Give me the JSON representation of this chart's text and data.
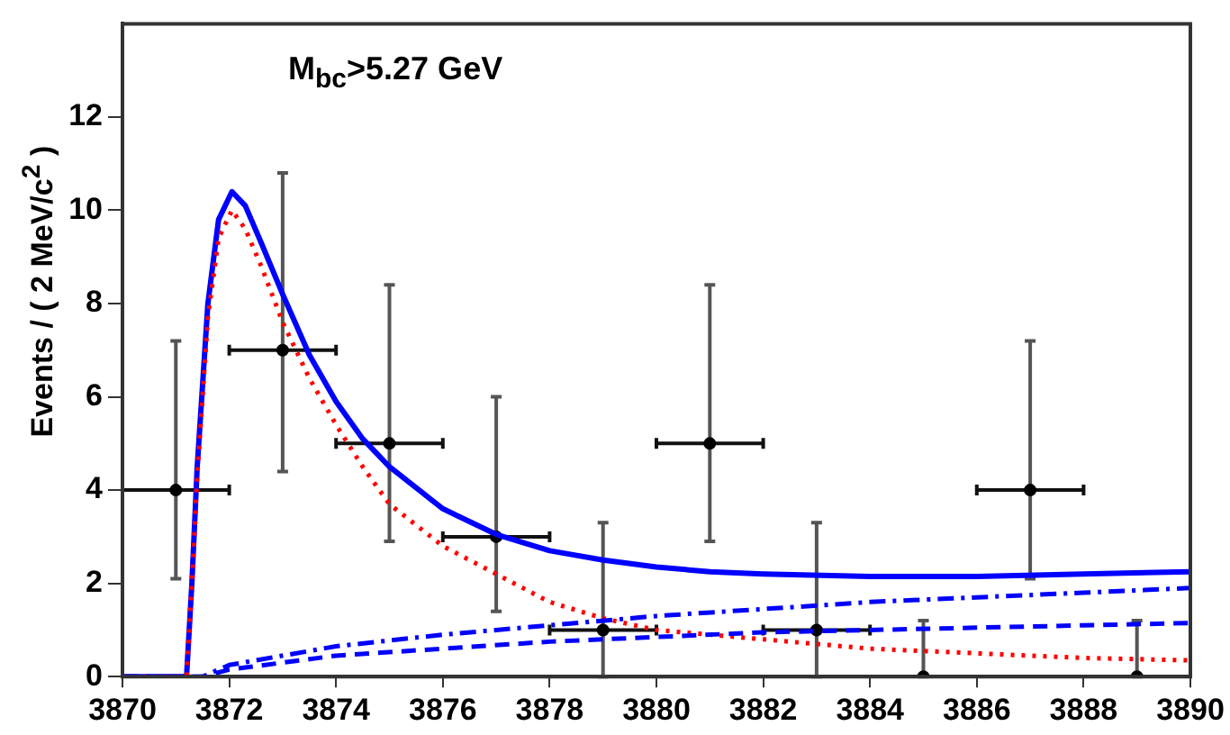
{
  "chart_data": {
    "type": "scatter",
    "ylabel": "Events / ( 2 MeV/c$^{2}$ )",
    "annotations": [
      "M$_{bc}$>5.27 GeV"
    ],
    "xlim": [
      3870,
      3890
    ],
    "xticks": [
      3870,
      3872,
      3874,
      3876,
      3878,
      3880,
      3882,
      3884,
      3886,
      3888,
      3890
    ],
    "ylim": [
      0,
      14
    ],
    "yticks": [
      0,
      2,
      4,
      6,
      8,
      10,
      12
    ],
    "grid": false,
    "legend": false,
    "series": [
      {
        "type": "line",
        "color": "#0000ff",
        "line_style": "dashed",
        "x": [
          3870,
          3871.5,
          3872,
          3874,
          3876,
          3878,
          3880,
          3882,
          3884,
          3886,
          3888,
          3890
        ],
        "values": [
          0,
          0,
          0.15,
          0.45,
          0.6,
          0.75,
          0.85,
          0.95,
          1.0,
          1.05,
          1.1,
          1.15
        ]
      },
      {
        "type": "line",
        "color": "#0000ff",
        "line_style": "dashdot",
        "x": [
          3870,
          3871.5,
          3872,
          3874,
          3876,
          3878,
          3880,
          3882,
          3884,
          3886,
          3888,
          3890
        ],
        "values": [
          0,
          0,
          0.25,
          0.65,
          0.9,
          1.1,
          1.3,
          1.45,
          1.6,
          1.7,
          1.8,
          1.9
        ]
      },
      {
        "type": "line",
        "color": "#ff0000",
        "line_style": "dotted",
        "x": [
          3870,
          3871.2,
          3871.3,
          3871.4,
          3871.6,
          3871.8,
          3872.05,
          3872.3,
          3872.6,
          3873,
          3873.5,
          3874,
          3874.5,
          3875,
          3876,
          3877,
          3878,
          3879,
          3880,
          3882,
          3884,
          3886,
          3888,
          3890
        ],
        "values": [
          0,
          0,
          2,
          4.3,
          7.7,
          9.4,
          10,
          9.6,
          8.8,
          7.6,
          6.4,
          5.4,
          4.5,
          3.7,
          2.8,
          2.2,
          1.6,
          1.25,
          1.0,
          0.8,
          0.6,
          0.5,
          0.4,
          0.35
        ]
      },
      {
        "type": "line",
        "color": "#0000ff",
        "line_style": "solid",
        "x": [
          3870,
          3871.2,
          3871.3,
          3871.4,
          3871.6,
          3871.8,
          3872.05,
          3872.3,
          3872.6,
          3873,
          3873.5,
          3874,
          3874.5,
          3875,
          3876,
          3877,
          3878,
          3879,
          3880,
          3881,
          3882,
          3884,
          3886,
          3888,
          3890
        ],
        "values": [
          0,
          0,
          2,
          4.5,
          8,
          9.8,
          10.4,
          10.1,
          9.3,
          8.2,
          6.9,
          5.9,
          5.1,
          4.5,
          3.6,
          3.05,
          2.7,
          2.5,
          2.35,
          2.25,
          2.2,
          2.15,
          2.15,
          2.2,
          2.25
        ]
      },
      {
        "type": "scatter",
        "color": "#000000",
        "marker": "circle",
        "x": [
          3871,
          3873,
          3875,
          3877,
          3879,
          3881,
          3883,
          3885,
          3887,
          3889
        ],
        "values": [
          4,
          7,
          5,
          3,
          1,
          5,
          1,
          0,
          4,
          0
        ],
        "errors": [
          [
            2.1,
            7.2
          ],
          [
            4.4,
            10.8
          ],
          [
            2.9,
            8.4
          ],
          [
            1.4,
            6
          ],
          [
            0,
            3.3
          ],
          [
            2.9,
            8.4
          ],
          [
            0,
            3.3
          ],
          [
            0,
            1.2
          ],
          [
            2.1,
            7.2
          ],
          [
            0,
            1.2
          ]
        ],
        "xerrors": [
          1,
          1,
          1,
          1,
          1,
          1,
          1,
          null,
          1,
          null
        ]
      }
    ]
  }
}
